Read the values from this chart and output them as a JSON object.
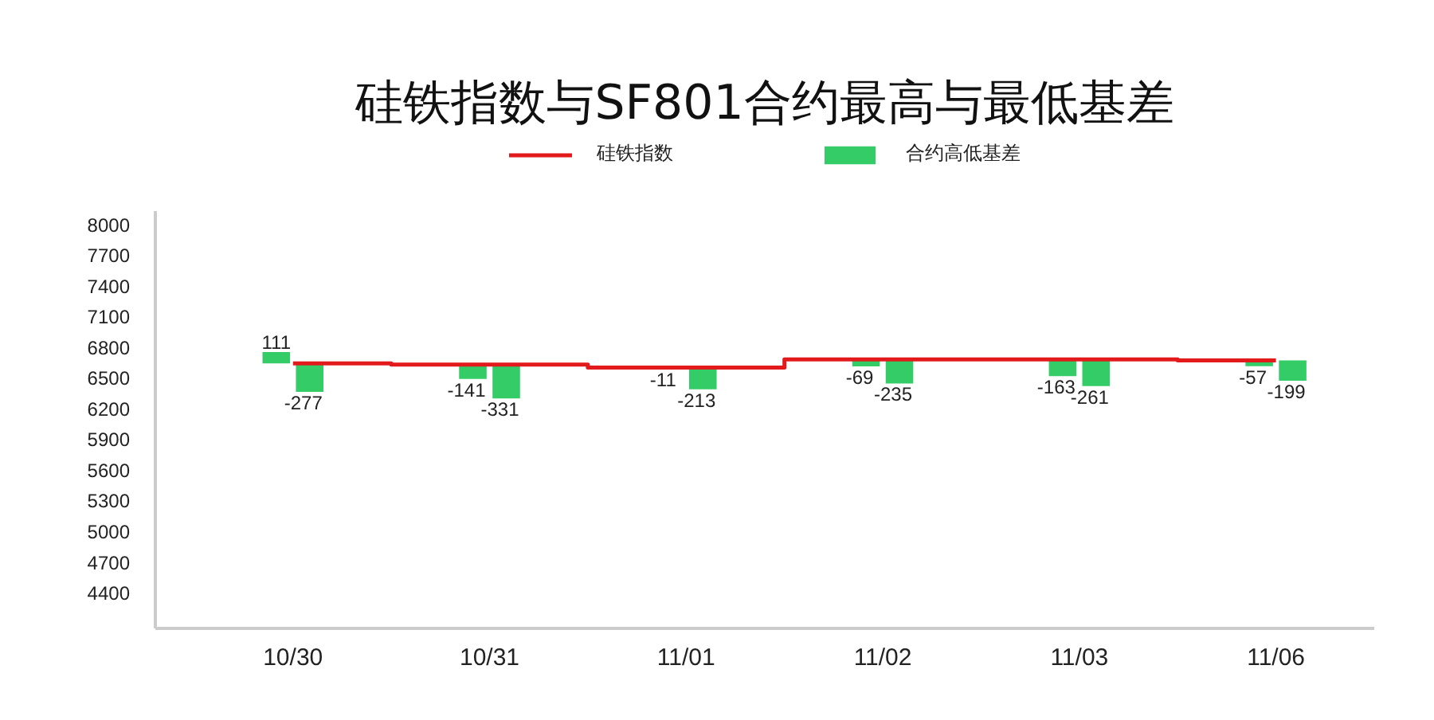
{
  "chart_data": {
    "type": "bar",
    "title": "硅铁指数与SF801合约最高与最低基差",
    "categories": [
      "10/30",
      "10/31",
      "11/01",
      "11/02",
      "11/03",
      "11/06"
    ],
    "series": [
      {
        "name": "硅铁指数",
        "type": "step",
        "color": "#e31a1c",
        "values": [
          6640,
          6630,
          6600,
          6680,
          6680,
          6670
        ]
      },
      {
        "name": "合约高低基差",
        "color": "#33cc66",
        "values": [
          111,
          -141,
          -11,
          -69,
          -163,
          -57
        ],
        "base": [
          6640,
          6630,
          6600,
          6680,
          6680,
          6670
        ],
        "value_labels": [
          "111",
          "-141",
          "-11",
          "-69",
          "-163",
          "-57"
        ]
      },
      {
        "color": "#33cc66",
        "values": [
          -277,
          -331,
          -213,
          -235,
          -261,
          -199
        ],
        "base": [
          6640,
          6630,
          6600,
          6680,
          6680,
          6670
        ],
        "value_labels": [
          "-277",
          "-331",
          "-213",
          "-235",
          "-261",
          "-199"
        ]
      }
    ],
    "ylim": [
      4050,
      8130
    ],
    "yticks": [
      4400,
      4700,
      5000,
      5300,
      5600,
      5900,
      6200,
      6500,
      6800,
      7100,
      7400,
      7700,
      8000
    ],
    "grid": false,
    "legend": "top"
  }
}
